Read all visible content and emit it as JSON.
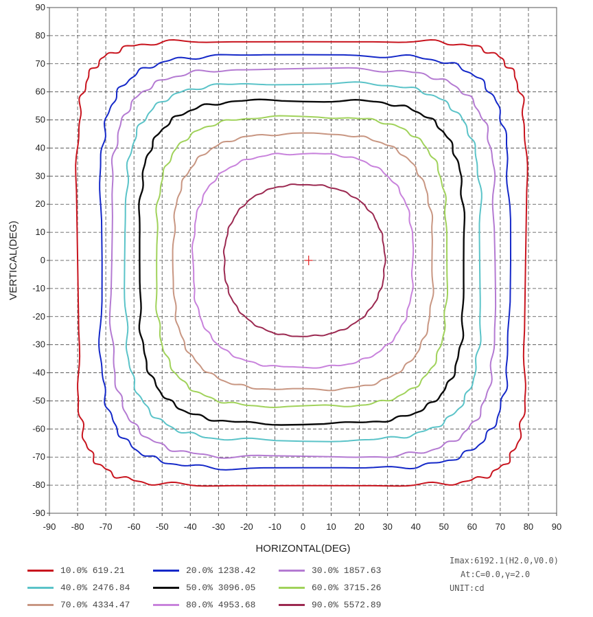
{
  "chart_data": {
    "type": "contour",
    "xlabel": "HORIZONTAL(DEG)",
    "ylabel": "VERTICAL(DEG)",
    "xlim": [
      -90,
      90
    ],
    "ylim": [
      -90,
      90
    ],
    "xticks": [
      "-90",
      "-80",
      "-70",
      "-60",
      "-50",
      "-40",
      "-30",
      "-20",
      "-10",
      "0",
      "10",
      "20",
      "30",
      "40",
      "50",
      "60",
      "70",
      "80",
      "90"
    ],
    "yticks": [
      "90",
      "80",
      "70",
      "60",
      "50",
      "40",
      "30",
      "20",
      "10",
      "0",
      "-10",
      "-20",
      "-30",
      "-40",
      "-50",
      "-60",
      "-70",
      "-80",
      "-90"
    ],
    "grid": true,
    "center_marker": {
      "x": 2,
      "y": 0,
      "color": "#e02020"
    },
    "series": [
      {
        "name": "10.0% 619.21",
        "color": "#c8141e",
        "right": 79,
        "left": -80,
        "top": 78,
        "bottom": -80,
        "squareness": 7
      },
      {
        "name": "20.0% 1238.42",
        "color": "#1428c8",
        "right": 73,
        "left": -72,
        "top": 73,
        "bottom": -74,
        "squareness": 5
      },
      {
        "name": "30.0% 1857.63",
        "color": "#b47ad2",
        "right": 68,
        "left": -68,
        "top": 68,
        "bottom": -70,
        "squareness": 4.6
      },
      {
        "name": "40.0% 2476.84",
        "color": "#5ac3c8",
        "right": 63,
        "left": -63,
        "top": 63,
        "bottom": -64,
        "squareness": 4.3
      },
      {
        "name": "50.0% 3096.05",
        "color": "#0a0a0a",
        "right": 57,
        "left": -58,
        "top": 57,
        "bottom": -58,
        "squareness": 4
      },
      {
        "name": "60.0% 3715.26",
        "color": "#a0d25a",
        "right": 51,
        "left": -52,
        "top": 51,
        "bottom": -52,
        "squareness": 3.6
      },
      {
        "name": "70.0% 4334.47",
        "color": "#c89682",
        "right": 46,
        "left": -46,
        "top": 45,
        "bottom": -46,
        "squareness": 3.2
      },
      {
        "name": "80.0% 4953.68",
        "color": "#c882dc",
        "right": 39,
        "left": -39,
        "top": 38,
        "bottom": -38,
        "squareness": 2.8
      },
      {
        "name": "90.0% 5572.89",
        "color": "#9b2850",
        "right": 29,
        "left": -28,
        "top": 27,
        "bottom": -27,
        "squareness": 2.3
      }
    ],
    "info": [
      "Imax:6192.1(H2.0,V0.0)",
      "At:C=0.0,γ=2.0",
      "UNIT:cd"
    ]
  }
}
